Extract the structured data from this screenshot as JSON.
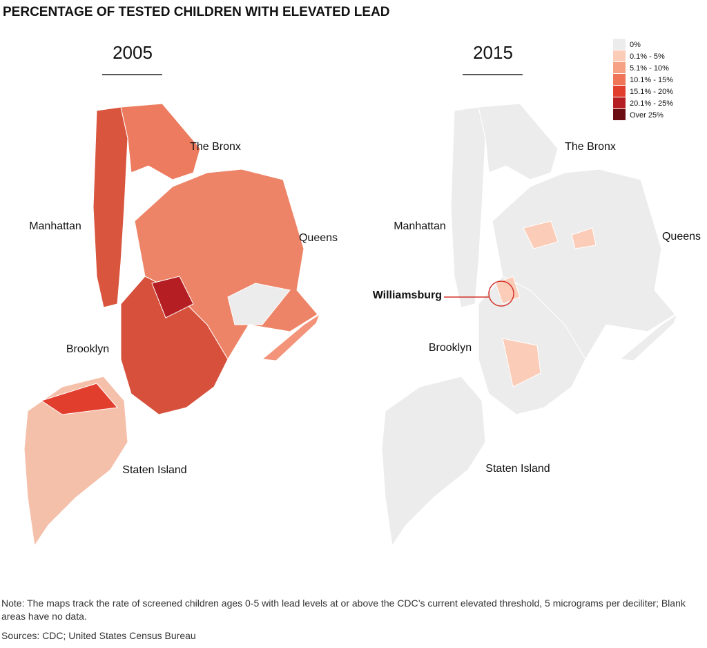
{
  "title": "PERCENTAGE OF TESTED CHILDREN WITH ELEVATED LEAD",
  "maps": [
    {
      "year": "2005",
      "labels": [
        "The Bronx",
        "Manhattan",
        "Queens",
        "Brooklyn",
        "Staten Island"
      ]
    },
    {
      "year": "2015",
      "labels": [
        "The Bronx",
        "Manhattan",
        "Queens",
        "Brooklyn",
        "Staten Island"
      ],
      "callout": "Williamsburg"
    }
  ],
  "legend": [
    {
      "label": "0%",
      "color": "#ececec"
    },
    {
      "label": "0.1% - 5%",
      "color": "#fbcdb9"
    },
    {
      "label": "5.1% - 10%",
      "color": "#f6a184"
    },
    {
      "label": "10.1% - 15%",
      "color": "#ef7458"
    },
    {
      "label": "15.1% - 20%",
      "color": "#e23e2e"
    },
    {
      "label": "20.1% - 25%",
      "color": "#b51e22"
    },
    {
      "label": "Over 25%",
      "color": "#6b0c12"
    }
  ],
  "note": "Note: The maps track the rate of screened children ages 0-5 with lead levels at or above the CDC’s current elevated threshold, 5 micrograms per deciliter; Blank areas have no data.",
  "sources": "Sources: CDC; United States Census Bureau"
}
